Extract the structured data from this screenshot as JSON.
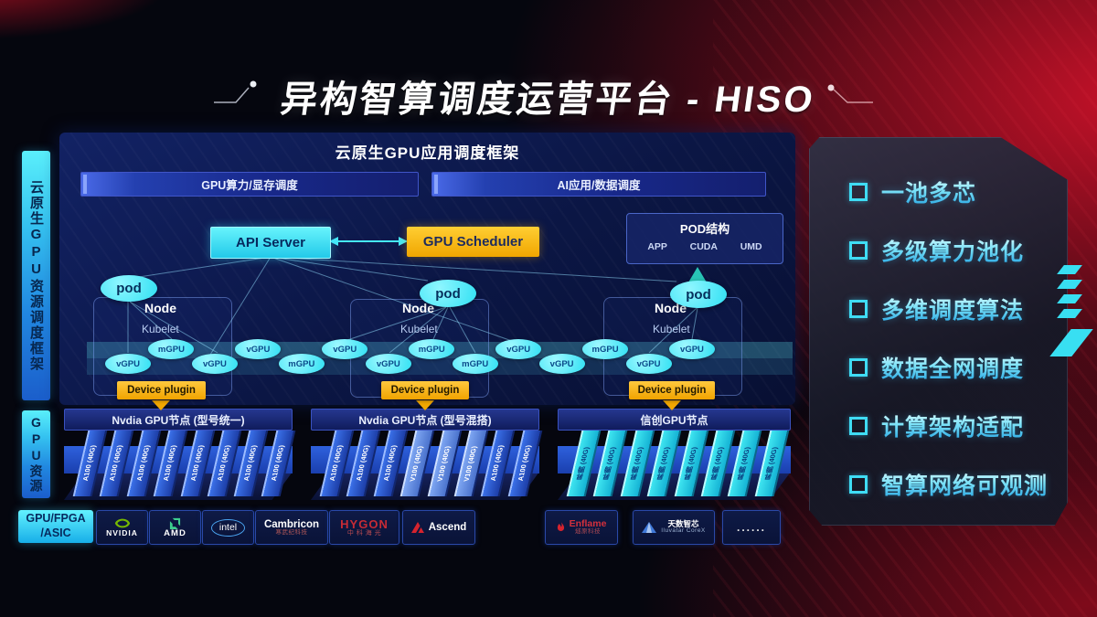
{
  "title": "异构智算调度运营平台 - HISO",
  "sidebar": {
    "top_label": "云原生GPU资源调度框架",
    "bottom_label": "GPU资源"
  },
  "framework": {
    "title": "云原生GPU应用调度框架",
    "scheduler_bars": [
      "GPU算力/显存调度",
      "AI应用/数据调度"
    ],
    "api_server": "API Server",
    "gpu_scheduler": "GPU Scheduler",
    "pod_box": {
      "title": "POD结构",
      "items": [
        "APP",
        "CUDA",
        "UMD"
      ]
    },
    "pods": [
      "pod",
      "pod",
      "pod"
    ],
    "nodes": [
      {
        "label": "Node",
        "sub": "Kubelet"
      },
      {
        "label": "Node",
        "sub": "Kubelet"
      },
      {
        "label": "Node",
        "sub": "Kubelet"
      }
    ],
    "gpu_ellipses": [
      "vGPU",
      "mGPU",
      "vGPU",
      "vGPU",
      "mGPU",
      "vGPU",
      "vGPU",
      "mGPU",
      "mGPU",
      "vGPU",
      "vGPU",
      "mGPU",
      "vGPU",
      "vGPU"
    ],
    "device_plugin": "Device plugin"
  },
  "gpu_groups": [
    {
      "label": "Nvdia GPU节点 (型号统一)",
      "cards": [
        "A100 (40G)",
        "A100 (40G)",
        "A100 (40G)",
        "A100 (40G)",
        "A100 (40G)",
        "A100 (40G)",
        "A100 (40G)",
        "A100 (40G)"
      ]
    },
    {
      "label": "Nvdia GPU节点 (型号混搭)",
      "cards": [
        "A100 (40G)",
        "A100 (40G)",
        "A100 (40G)",
        "V100 (40G)",
        "V100 (40G)",
        "V100 (40G)",
        "A100 (40G)",
        "A100 (40G)"
      ]
    },
    {
      "label": "信创GPU节点",
      "cards": [
        "昇腾 (40G)",
        "昇腾 (40G)",
        "昇腾 (40G)",
        "昇腾 (40G)",
        "昇腾 (40G)",
        "昇腾 (40G)",
        "昇腾 (40G)",
        "昇腾 (40G)"
      ]
    }
  ],
  "vendors": {
    "label_line1": "GPU/FPGA",
    "label_line2": "/ASIC",
    "items": [
      {
        "name": "NVIDIA",
        "sub": ""
      },
      {
        "name": "AMD",
        "sub": ""
      },
      {
        "name": "intel",
        "sub": ""
      },
      {
        "name": "Cambricon",
        "sub": "寒武纪科技"
      },
      {
        "name": "HYGON",
        "sub": "中 科 海 光"
      },
      {
        "name": "Ascend",
        "sub": ""
      },
      {
        "name": "Enflame",
        "sub": "燧原科技"
      },
      {
        "name": "天数智芯",
        "sub": "Iluvatar CoreX"
      },
      {
        "name": "......",
        "sub": ""
      }
    ]
  },
  "right_panel": {
    "items": [
      "一池多芯",
      "多级算力池化",
      "多维调度算法",
      "数据全网调度",
      "计算架构适配",
      "智算网络可观测"
    ]
  },
  "colors": {
    "cyan": "#3ee9f7",
    "gold": "#f6b400",
    "orange": "#f6a800",
    "nvidia_green": "#76b900",
    "vendor_red": "#d5232e",
    "panel_text_cyan": "#7ce2f8"
  }
}
